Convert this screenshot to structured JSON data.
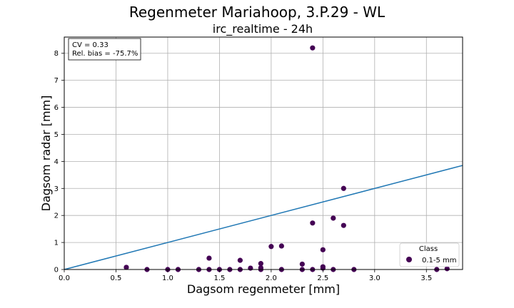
{
  "chart_data": {
    "type": "scatter",
    "title": "Regenmeter Mariahoop, 3.P.29 - WL",
    "subtitle": "irc_realtime - 24h",
    "xlabel": "Dagsom regenmeter [mm]",
    "ylabel": "Dagsom radar [mm]",
    "xlim": [
      0,
      3.85
    ],
    "ylim": [
      0,
      8.6
    ],
    "xticks": [
      "0.0",
      "0.5",
      "1.0",
      "1.5",
      "2.0",
      "2.5",
      "3.0",
      "3.5"
    ],
    "yticks": [
      "0",
      "1",
      "2",
      "3",
      "4",
      "5",
      "6",
      "7",
      "8"
    ],
    "grid": true,
    "stats": {
      "cv": "CV = 0.33",
      "bias": "Rel. bias = -75.7%"
    },
    "legend": {
      "title": "Class",
      "placement": "lower-right"
    },
    "reference_line": {
      "slope": 1,
      "color": "#1f77b4"
    },
    "series": [
      {
        "name": "0.1-5 mm",
        "color": "#440154",
        "points": [
          {
            "x": 0.6,
            "y": 0.08
          },
          {
            "x": 0.8,
            "y": 0.0
          },
          {
            "x": 1.0,
            "y": 0.0
          },
          {
            "x": 1.1,
            "y": 0.0
          },
          {
            "x": 1.3,
            "y": 0.0
          },
          {
            "x": 1.4,
            "y": 0.42
          },
          {
            "x": 1.4,
            "y": 0.0
          },
          {
            "x": 1.5,
            "y": 0.0
          },
          {
            "x": 1.6,
            "y": 0.0
          },
          {
            "x": 1.7,
            "y": 0.34
          },
          {
            "x": 1.7,
            "y": 0.0
          },
          {
            "x": 1.8,
            "y": 0.05
          },
          {
            "x": 1.9,
            "y": 0.22
          },
          {
            "x": 1.9,
            "y": 0.06
          },
          {
            "x": 1.9,
            "y": 0.0
          },
          {
            "x": 2.0,
            "y": 0.85
          },
          {
            "x": 2.1,
            "y": 0.87
          },
          {
            "x": 2.1,
            "y": 0.0
          },
          {
            "x": 2.3,
            "y": 0.2
          },
          {
            "x": 2.3,
            "y": 0.0
          },
          {
            "x": 2.4,
            "y": 8.2
          },
          {
            "x": 2.4,
            "y": 1.72
          },
          {
            "x": 2.4,
            "y": 0.0
          },
          {
            "x": 2.5,
            "y": 0.73
          },
          {
            "x": 2.5,
            "y": 0.1
          },
          {
            "x": 2.5,
            "y": 0.05
          },
          {
            "x": 2.6,
            "y": 1.9
          },
          {
            "x": 2.6,
            "y": 0.0
          },
          {
            "x": 2.7,
            "y": 3.0
          },
          {
            "x": 2.7,
            "y": 1.63
          },
          {
            "x": 2.8,
            "y": 0.0
          },
          {
            "x": 3.6,
            "y": 0.0
          },
          {
            "x": 3.7,
            "y": 0.03
          }
        ]
      }
    ]
  }
}
